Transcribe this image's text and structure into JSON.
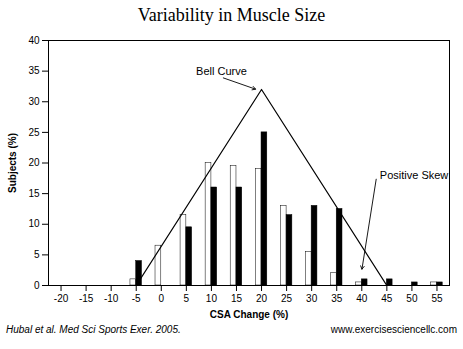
{
  "chart_data": {
    "type": "bar",
    "title": "Variability in Muscle Size",
    "xlabel": "CSA Change (%)",
    "ylabel": "Subjects (%)",
    "x": [
      -5,
      0,
      5,
      10,
      15,
      20,
      25,
      30,
      35,
      40,
      45,
      50,
      55
    ],
    "series": [
      {
        "color": "white",
        "values": [
          1,
          6.5,
          11.5,
          20,
          19.5,
          19,
          13,
          5.5,
          2,
          0.5,
          0,
          0,
          0.5
        ]
      },
      {
        "color": "black",
        "values": [
          4,
          0,
          9.5,
          16,
          16,
          25,
          11.5,
          13,
          12.5,
          1,
          1,
          0.5,
          0.5
        ]
      }
    ],
    "xlim": [
      -22.5,
      57.5
    ],
    "xticks": [
      -20,
      -15,
      -10,
      -5,
      0,
      5,
      10,
      15,
      20,
      25,
      30,
      35,
      40,
      45,
      50,
      55
    ],
    "ylim": [
      0,
      40
    ],
    "yticks": [
      0,
      5,
      10,
      15,
      20,
      25,
      30,
      35,
      40
    ],
    "grid": false,
    "lines": [
      {
        "x": [
          -5,
          20,
          45
        ],
        "y": [
          0,
          32,
          0
        ],
        "color": "black"
      }
    ],
    "annotations": [
      {
        "text": "Bell Curve",
        "x": 19,
        "y": 32,
        "text_x": 12,
        "text_y": 34
      },
      {
        "text": "Positive Skew",
        "x": 40,
        "y": 2.5,
        "text_x": 43,
        "text_y": 18
      }
    ],
    "footnotes": [
      "Hubal et al. Med Sci Sports Exer. 2005.",
      "www.exercisesciencellc.com"
    ]
  }
}
